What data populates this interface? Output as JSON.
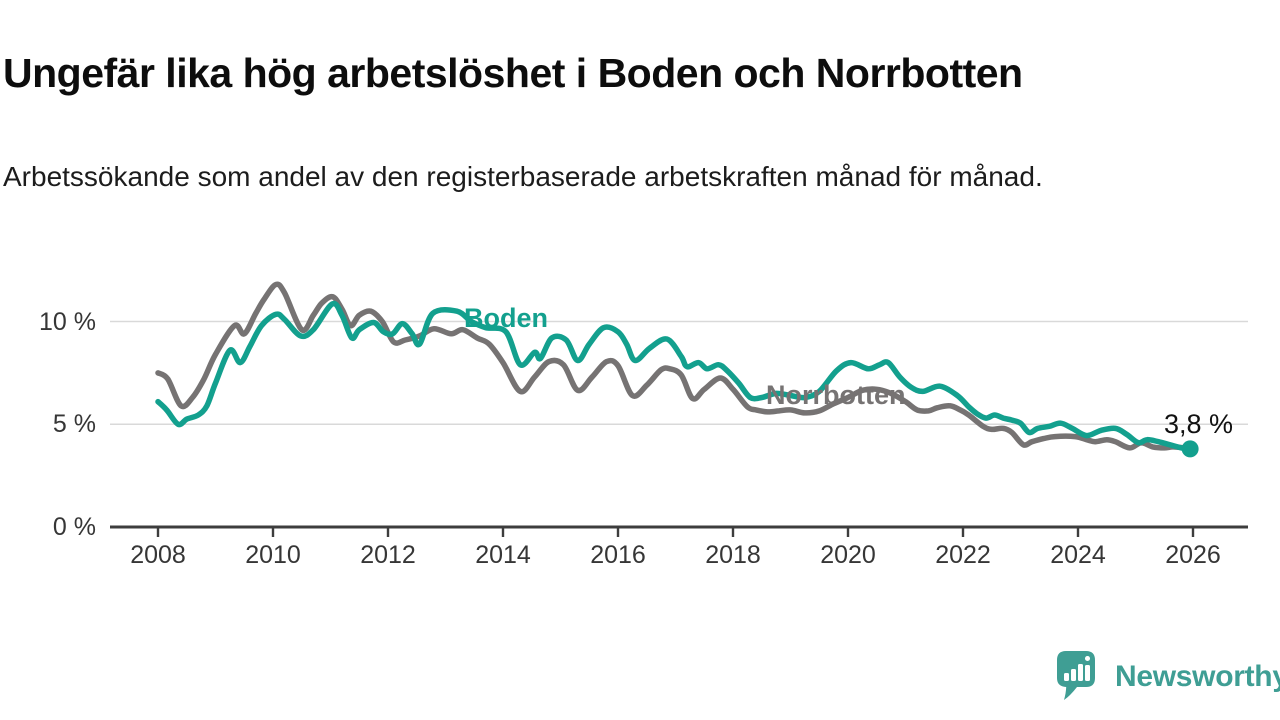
{
  "header": {
    "title": "Ungefär lika hög arbetslöshet i Boden och Norrbotten",
    "subtitle": "Arbetssökande som andel av den registerbaserade arbetskraften månad för månad."
  },
  "chart_data": {
    "type": "line",
    "title": "Ungefär lika hög arbetslöshet i Boden och Norrbotten",
    "subtitle": "Arbetssökande som andel av den registerbaserade arbetskraften månad för månad.",
    "x_unit": "year",
    "y_unit": "%",
    "xlim": [
      2008,
      2026
    ],
    "ylim": [
      0,
      12.5
    ],
    "grid": "horizontal",
    "legend": "inline-labels",
    "x_ticks": [
      2008,
      2010,
      2012,
      2014,
      2016,
      2018,
      2020,
      2022,
      2024,
      2026
    ],
    "y_ticks": [
      {
        "value": 0,
        "label": "0 %"
      },
      {
        "value": 5,
        "label": "5 %"
      },
      {
        "value": 10,
        "label": "10 %"
      }
    ],
    "series": [
      {
        "name": "Norrbotten",
        "color": "#767373",
        "points": [
          [
            2008,
            7.5
          ],
          [
            2008.17,
            7.2
          ],
          [
            2008.4,
            5.9
          ],
          [
            2008.6,
            6.3
          ],
          [
            2008.8,
            7.2
          ],
          [
            2009,
            8.4
          ],
          [
            2009.33,
            9.8
          ],
          [
            2009.5,
            9.4
          ],
          [
            2009.7,
            10.4
          ],
          [
            2009.85,
            11.1
          ],
          [
            2010.05,
            11.8
          ],
          [
            2010.2,
            11.4
          ],
          [
            2010.5,
            9.6
          ],
          [
            2010.7,
            10.3
          ],
          [
            2010.85,
            10.9
          ],
          [
            2011.04,
            11.2
          ],
          [
            2011.2,
            10.6
          ],
          [
            2011.35,
            9.8
          ],
          [
            2011.5,
            10.3
          ],
          [
            2011.7,
            10.5
          ],
          [
            2011.9,
            10
          ],
          [
            2012.1,
            9
          ],
          [
            2012.3,
            9.1
          ],
          [
            2012.55,
            9.3
          ],
          [
            2012.8,
            9.65
          ],
          [
            2013.1,
            9.4
          ],
          [
            2013.3,
            9.6
          ],
          [
            2013.55,
            9.2
          ],
          [
            2013.76,
            8.9
          ],
          [
            2014,
            8
          ],
          [
            2014.3,
            6.6
          ],
          [
            2014.55,
            7.3
          ],
          [
            2014.8,
            8.05
          ],
          [
            2015.05,
            7.9
          ],
          [
            2015.3,
            6.65
          ],
          [
            2015.55,
            7.3
          ],
          [
            2015.8,
            8.05
          ],
          [
            2016,
            7.85
          ],
          [
            2016.25,
            6.4
          ],
          [
            2016.5,
            6.9
          ],
          [
            2016.75,
            7.65
          ],
          [
            2016.9,
            7.7
          ],
          [
            2017.1,
            7.4
          ],
          [
            2017.3,
            6.25
          ],
          [
            2017.5,
            6.7
          ],
          [
            2017.78,
            7.25
          ],
          [
            2018,
            6.7
          ],
          [
            2018.25,
            5.85
          ],
          [
            2018.4,
            5.7
          ],
          [
            2018.6,
            5.6
          ],
          [
            2018.8,
            5.65
          ],
          [
            2019,
            5.7
          ],
          [
            2019.25,
            5.55
          ],
          [
            2019.5,
            5.65
          ],
          [
            2019.75,
            6
          ],
          [
            2020,
            6.3
          ],
          [
            2020.25,
            6.65
          ],
          [
            2020.5,
            6.7
          ],
          [
            2020.75,
            6.5
          ],
          [
            2021,
            6.1
          ],
          [
            2021.2,
            5.7
          ],
          [
            2021.4,
            5.65
          ],
          [
            2021.55,
            5.8
          ],
          [
            2021.77,
            5.9
          ],
          [
            2021.95,
            5.7
          ],
          [
            2022.1,
            5.45
          ],
          [
            2022.35,
            4.9
          ],
          [
            2022.5,
            4.75
          ],
          [
            2022.7,
            4.8
          ],
          [
            2022.85,
            4.6
          ],
          [
            2023.05,
            4
          ],
          [
            2023.2,
            4.15
          ],
          [
            2023.4,
            4.3
          ],
          [
            2023.6,
            4.4
          ],
          [
            2023.95,
            4.4
          ],
          [
            2024.15,
            4.25
          ],
          [
            2024.3,
            4.15
          ],
          [
            2024.5,
            4.25
          ],
          [
            2024.65,
            4.15
          ],
          [
            2024.9,
            3.85
          ],
          [
            2025.1,
            4.1
          ],
          [
            2025.3,
            3.9
          ],
          [
            2025.5,
            3.85
          ],
          [
            2025.65,
            3.9
          ],
          [
            2025.85,
            3.85
          ]
        ]
      },
      {
        "name": "Boden",
        "color": "#13a08e",
        "points": [
          [
            2008,
            6.1
          ],
          [
            2008.15,
            5.7
          ],
          [
            2008.35,
            5
          ],
          [
            2008.5,
            5.25
          ],
          [
            2008.7,
            5.45
          ],
          [
            2008.85,
            5.9
          ],
          [
            2009,
            7
          ],
          [
            2009.25,
            8.6
          ],
          [
            2009.43,
            8
          ],
          [
            2009.6,
            8.8
          ],
          [
            2009.8,
            9.8
          ],
          [
            2010.05,
            10.35
          ],
          [
            2010.2,
            10.1
          ],
          [
            2010.48,
            9.3
          ],
          [
            2010.7,
            9.6
          ],
          [
            2011.03,
            10.85
          ],
          [
            2011.2,
            10.3
          ],
          [
            2011.37,
            9.2
          ],
          [
            2011.5,
            9.6
          ],
          [
            2011.75,
            9.95
          ],
          [
            2011.92,
            9.5
          ],
          [
            2012.08,
            9.4
          ],
          [
            2012.25,
            9.9
          ],
          [
            2012.42,
            9.4
          ],
          [
            2012.55,
            8.9
          ],
          [
            2012.78,
            10.4
          ],
          [
            2013.2,
            10.5
          ],
          [
            2013.45,
            10
          ],
          [
            2013.7,
            9.7
          ],
          [
            2014.05,
            9.5
          ],
          [
            2014.3,
            7.9
          ],
          [
            2014.55,
            8.5
          ],
          [
            2014.65,
            8.2
          ],
          [
            2014.85,
            9.2
          ],
          [
            2015.1,
            9.1
          ],
          [
            2015.3,
            8.1
          ],
          [
            2015.5,
            8.9
          ],
          [
            2015.75,
            9.7
          ],
          [
            2016,
            9.5
          ],
          [
            2016.15,
            8.9
          ],
          [
            2016.3,
            8.1
          ],
          [
            2016.55,
            8.7
          ],
          [
            2016.85,
            9.15
          ],
          [
            2017.1,
            8.3
          ],
          [
            2017.2,
            7.8
          ],
          [
            2017.4,
            8
          ],
          [
            2017.55,
            7.7
          ],
          [
            2017.75,
            7.9
          ],
          [
            2017.9,
            7.6
          ],
          [
            2018.1,
            7
          ],
          [
            2018.3,
            6.3
          ],
          [
            2018.5,
            6.3
          ],
          [
            2018.75,
            6.5
          ],
          [
            2019,
            6.4
          ],
          [
            2019.25,
            6.3
          ],
          [
            2019.5,
            6.6
          ],
          [
            2019.8,
            7.6
          ],
          [
            2020.05,
            8
          ],
          [
            2020.35,
            7.7
          ],
          [
            2020.55,
            7.9
          ],
          [
            2020.7,
            8
          ],
          [
            2020.9,
            7.3
          ],
          [
            2021.1,
            6.8
          ],
          [
            2021.3,
            6.6
          ],
          [
            2021.6,
            6.85
          ],
          [
            2021.9,
            6.4
          ],
          [
            2022.1,
            5.85
          ],
          [
            2022.25,
            5.5
          ],
          [
            2022.4,
            5.3
          ],
          [
            2022.55,
            5.45
          ],
          [
            2022.7,
            5.3
          ],
          [
            2022.85,
            5.2
          ],
          [
            2023,
            5.05
          ],
          [
            2023.15,
            4.6
          ],
          [
            2023.3,
            4.8
          ],
          [
            2023.5,
            4.9
          ],
          [
            2023.7,
            5.05
          ],
          [
            2023.9,
            4.8
          ],
          [
            2024.15,
            4.45
          ],
          [
            2024.4,
            4.7
          ],
          [
            2024.65,
            4.8
          ],
          [
            2024.85,
            4.5
          ],
          [
            2025.05,
            4.1
          ],
          [
            2025.2,
            4.25
          ],
          [
            2025.4,
            4.15
          ],
          [
            2025.6,
            4
          ],
          [
            2025.8,
            3.85
          ],
          [
            2025.95,
            3.8
          ]
        ]
      }
    ],
    "end_annotation": {
      "series": "Boden",
      "label": "3,8 %",
      "value": 3.8,
      "year": 2025.95
    },
    "colors": {
      "boden": "#13a08e",
      "norrbotten": "#767373",
      "grid": "#d9d9d9",
      "axis": "#3d3d3d",
      "tick_label": "#363636"
    }
  },
  "footer": {
    "brand": "Newsworthy",
    "brand_color": "#3f9e94",
    "logo_icon": "speech-bubble-bar-chart-exclamation-icon"
  }
}
